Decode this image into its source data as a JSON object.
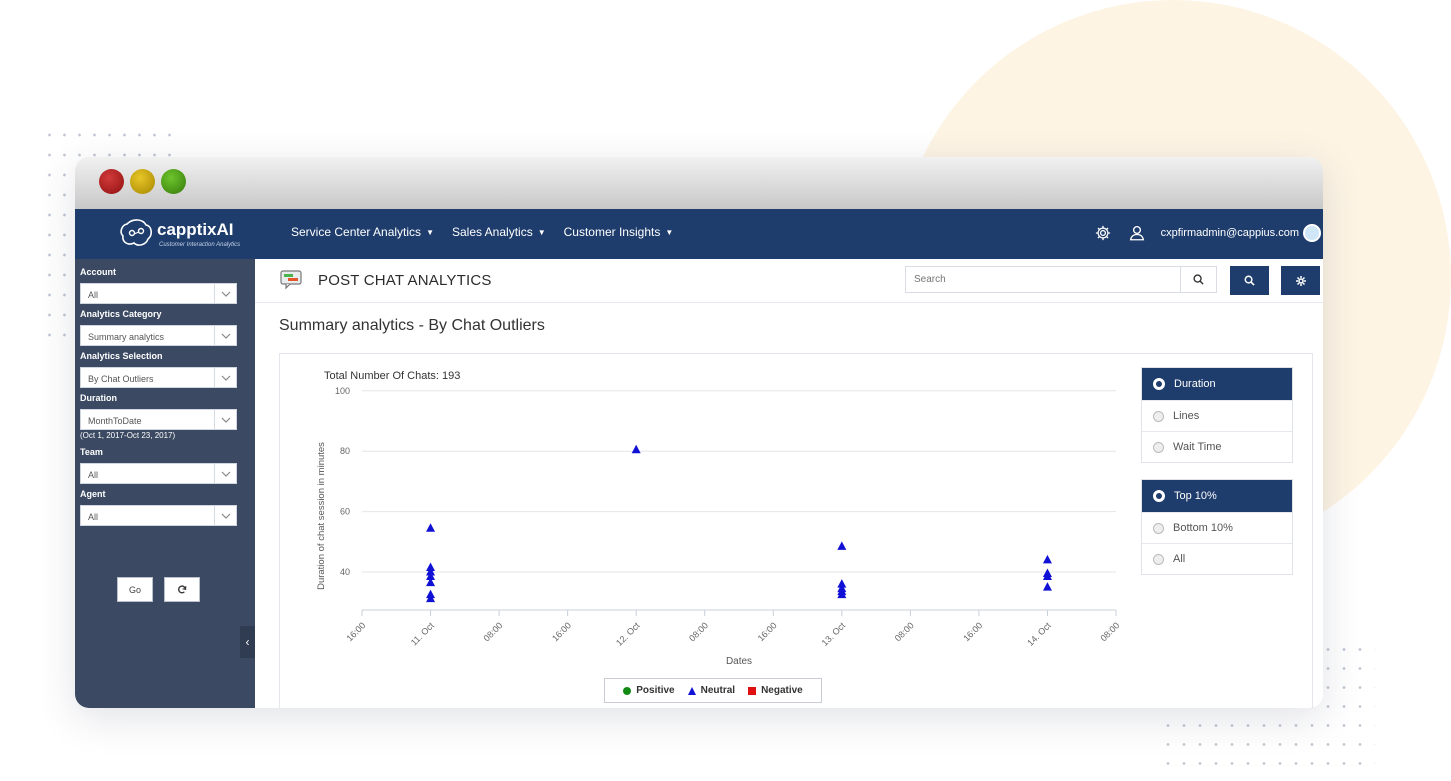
{
  "nav": {
    "logo_text": "capptixAI",
    "logo_sub": "Customer Interaction Analytics",
    "menu": [
      "Service Center Analytics",
      "Sales Analytics",
      "Customer Insights"
    ],
    "user_email": "cxpfirmadmin@cappius.com"
  },
  "sidebar": {
    "fields": [
      {
        "label": "Account",
        "value": "All"
      },
      {
        "label": "Analytics Category",
        "value": "Summary analytics"
      },
      {
        "label": "Analytics Selection",
        "value": "By Chat Outliers"
      },
      {
        "label": "Duration",
        "value": "MonthToDate",
        "note": "(Oct 1, 2017-Oct 23, 2017)"
      },
      {
        "label": "Team",
        "value": "All"
      },
      {
        "label": "Agent",
        "value": "All"
      }
    ],
    "go_label": "Go"
  },
  "header": {
    "title": "POST CHAT ANALYTICS",
    "search_placeholder": "Search"
  },
  "section_title": "Summary analytics - By Chat Outliers",
  "metric_options": [
    {
      "label": "Duration",
      "selected": true
    },
    {
      "label": "Lines",
      "selected": false
    },
    {
      "label": "Wait Time",
      "selected": false
    }
  ],
  "filter_options": [
    {
      "label": "Top 10%",
      "selected": true
    },
    {
      "label": "Bottom 10%",
      "selected": false
    },
    {
      "label": "All",
      "selected": false
    }
  ],
  "colors": {
    "navy": "#1e3d6c",
    "sidebar": "#3b4a62",
    "positive": "#138a13",
    "neutral": "#1111d6",
    "negative": "#e11010"
  },
  "chart_data": {
    "type": "scatter",
    "title": "Total Number Of Chats: 193",
    "xlabel": "Dates",
    "ylabel": "Duration of chat session in minutes",
    "x_tick_labels": [
      "16:00",
      "11. Oct",
      "08:00",
      "16:00",
      "12. Oct",
      "08:00",
      "16:00",
      "13. Oct",
      "08:00",
      "16:00",
      "14. Oct",
      "08:00"
    ],
    "y_ticks": [
      40,
      60,
      80,
      100
    ],
    "ylim": [
      28,
      100
    ],
    "grid": true,
    "legend_position": "bottom-center",
    "series": [
      {
        "name": "Positive",
        "marker": "circle",
        "points": []
      },
      {
        "name": "Neutral",
        "marker": "triangle",
        "points": [
          {
            "x": "2017-10-11 00:00",
            "y": 54.5
          },
          {
            "x": "2017-10-11 00:00",
            "y": 41.5
          },
          {
            "x": "2017-10-11 00:00",
            "y": 40
          },
          {
            "x": "2017-10-11 00:00",
            "y": 38.5
          },
          {
            "x": "2017-10-11 00:00",
            "y": 36.5
          },
          {
            "x": "2017-10-11 00:00",
            "y": 32.5
          },
          {
            "x": "2017-10-11 00:00",
            "y": 31.2
          },
          {
            "x": "2017-10-12 00:00",
            "y": 80.5
          },
          {
            "x": "2017-10-13 00:00",
            "y": 48.5
          },
          {
            "x": "2017-10-13 00:00",
            "y": 36
          },
          {
            "x": "2017-10-13 00:00",
            "y": 34.5
          },
          {
            "x": "2017-10-13 00:00",
            "y": 33.5
          },
          {
            "x": "2017-10-13 00:00",
            "y": 32.5
          },
          {
            "x": "2017-10-14 00:00",
            "y": 44
          },
          {
            "x": "2017-10-14 00:00",
            "y": 39.5
          },
          {
            "x": "2017-10-14 00:00",
            "y": 38.5
          },
          {
            "x": "2017-10-14 00:00",
            "y": 35
          }
        ]
      },
      {
        "name": "Negative",
        "marker": "square",
        "points": []
      }
    ]
  }
}
